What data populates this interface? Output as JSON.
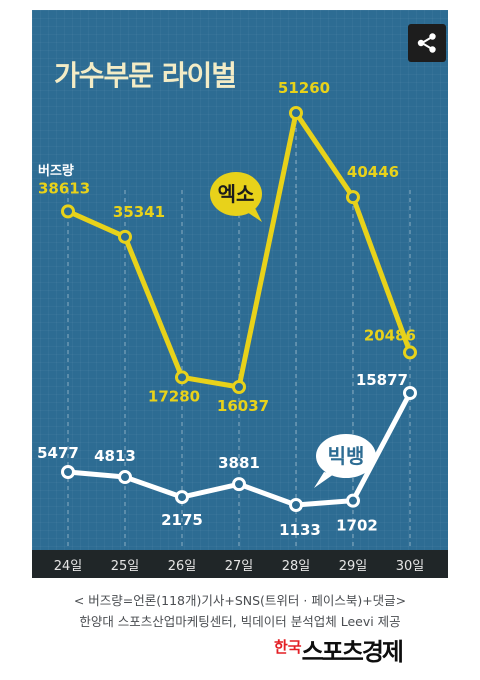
{
  "title": "가수부문 라이벌",
  "chart_data": {
    "type": "line",
    "categories": [
      "24일",
      "25일",
      "26일",
      "27일",
      "28일",
      "29일",
      "30일"
    ],
    "y_label": "버즈량",
    "series": [
      {
        "name": "엑소",
        "values": [
          38613,
          35341,
          17280,
          16037,
          51260,
          40446,
          20486
        ],
        "color": "#e8d21a"
      },
      {
        "name": "빅뱅",
        "values": [
          5477,
          4813,
          2175,
          3881,
          1133,
          1702,
          15877
        ],
        "color": "#ffffff"
      }
    ],
    "grid": "vertical dashed"
  },
  "footer": {
    "line1": "< 버즈량=언론(118개)기사+SNS(트위터 · 페이스북)+댓글>",
    "line2": "한양대 스포츠산업마케팅센터, 빅데이터 분석업체 Leevi 제공"
  },
  "logo": {
    "red": "한국",
    "black": "스포츠경제"
  },
  "share_icon": "share-icon",
  "colors": {
    "panel": "#2d6c93",
    "yellow": "#e8d21a",
    "white": "#ffffff",
    "axis_bar": "#202628"
  }
}
